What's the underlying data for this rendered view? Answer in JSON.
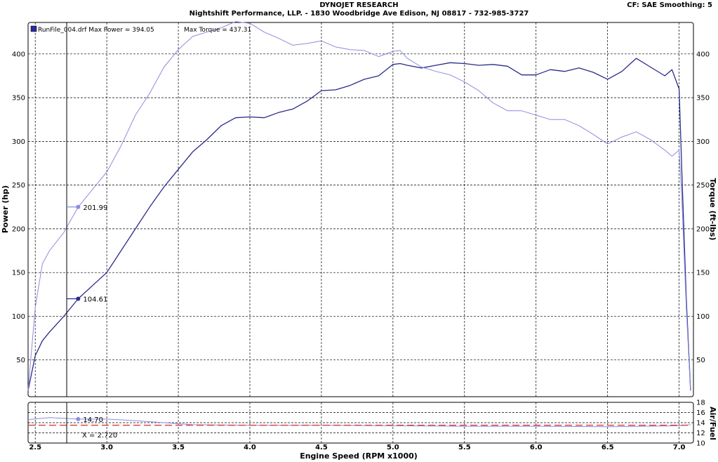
{
  "header": {
    "title": "DYNOJET RESEARCH",
    "subtitle": "Nightshift Performance, LLP. - 1830 Woodbridge Ave Edison, NJ 08817 - 732-985-3727",
    "settings": "CF: SAE  Smoothing: 5"
  },
  "legend": {
    "run_label": "RunFile_004.drf Max Power = 394.05",
    "torque_label": "Max Torque = 437.31"
  },
  "cursor": {
    "x_value": 2.72,
    "x_label": "X = 2.720",
    "power_readout": "104.61",
    "torque_readout": "201.99",
    "afr_readout": "14.70"
  },
  "colors": {
    "power": "#2a2a8a",
    "torque": "#8c8ce0",
    "afr": "#8c8ce0",
    "afr_target": "#d84a4a",
    "grid": "#000000"
  },
  "chart_data": [
    {
      "type": "line",
      "xlabel": "Engine Speed (RPM x1000)",
      "ylabel": "Power (hp)",
      "y2label": "Torque (ft-lbs)",
      "xlim": [
        2.45,
        7.1
      ],
      "ylim": [
        8,
        436
      ],
      "y2lim": [
        8,
        436
      ],
      "xticks": [
        2.5,
        3.0,
        3.5,
        4.0,
        4.5,
        5.0,
        5.5,
        6.0,
        6.5,
        7.0
      ],
      "xtick_labels": [
        "2.5",
        "3.0",
        "3.5",
        "4.0",
        "4.5",
        "5.0",
        "5.5",
        "6.0",
        "6.5",
        "7.0"
      ],
      "yticks": [
        50,
        100,
        150,
        200,
        250,
        300,
        350,
        400
      ],
      "ytick_labels": [
        "50",
        "100",
        "150",
        "200",
        "250",
        "300",
        "350",
        "400"
      ],
      "grid": true,
      "series": [
        {
          "name": "Power",
          "axis": "left",
          "color": "#2a2a8a",
          "x": [
            2.45,
            2.5,
            2.55,
            2.6,
            2.7,
            2.8,
            2.9,
            3.0,
            3.1,
            3.2,
            3.3,
            3.4,
            3.5,
            3.6,
            3.7,
            3.8,
            3.9,
            4.0,
            4.1,
            4.2,
            4.3,
            4.4,
            4.5,
            4.6,
            4.7,
            4.8,
            4.9,
            5.0,
            5.05,
            5.1,
            5.2,
            5.3,
            5.4,
            5.5,
            5.6,
            5.7,
            5.8,
            5.9,
            6.0,
            6.1,
            6.2,
            6.3,
            6.4,
            6.5,
            6.6,
            6.7,
            6.8,
            6.9,
            6.95,
            7.0,
            7.02,
            7.05,
            7.08
          ],
          "y": [
            15,
            55,
            72,
            82,
            100,
            120,
            135,
            150,
            175,
            200,
            225,
            248,
            268,
            288,
            302,
            318,
            327,
            328,
            327,
            333,
            337,
            346,
            358,
            359,
            364,
            371,
            375,
            388,
            389,
            387,
            384,
            387,
            390,
            389,
            387,
            388,
            386,
            376,
            376,
            382,
            380,
            384,
            379,
            371,
            380,
            395,
            385,
            375,
            382,
            360,
            260,
            120,
            15
          ]
        },
        {
          "name": "Torque",
          "axis": "right",
          "color": "#8c8ce0",
          "x": [
            2.45,
            2.5,
            2.55,
            2.6,
            2.7,
            2.8,
            2.9,
            3.0,
            3.1,
            3.2,
            3.3,
            3.4,
            3.5,
            3.6,
            3.7,
            3.8,
            3.9,
            4.0,
            4.1,
            4.2,
            4.3,
            4.4,
            4.5,
            4.6,
            4.7,
            4.8,
            4.9,
            5.0,
            5.05,
            5.1,
            5.2,
            5.3,
            5.4,
            5.5,
            5.6,
            5.7,
            5.8,
            5.9,
            6.0,
            6.1,
            6.2,
            6.3,
            6.4,
            6.5,
            6.6,
            6.7,
            6.8,
            6.9,
            6.95,
            7.0,
            7.02,
            7.05,
            7.08
          ],
          "y": [
            15,
            110,
            160,
            175,
            196,
            225,
            245,
            265,
            295,
            330,
            355,
            385,
            405,
            420,
            425,
            430,
            437,
            435,
            425,
            418,
            410,
            412,
            415,
            408,
            405,
            404,
            397,
            403,
            404,
            395,
            385,
            380,
            376,
            368,
            358,
            344,
            335,
            335,
            330,
            325,
            325,
            318,
            308,
            297,
            305,
            311,
            302,
            290,
            283,
            290,
            230,
            110,
            15
          ]
        }
      ]
    },
    {
      "type": "line",
      "xlabel": "Engine Speed (RPM x1000)",
      "ylabel": "Air/Fuel",
      "xlim": [
        2.45,
        7.1
      ],
      "ylim": [
        10,
        18
      ],
      "yticks": [
        10,
        12,
        14,
        16,
        18
      ],
      "ytick_labels": [
        "10",
        "12",
        "14",
        "16",
        "18"
      ],
      "grid": true,
      "series": [
        {
          "name": "Air/Fuel",
          "color": "#8c8ce0",
          "x": [
            2.45,
            2.6,
            2.8,
            3.0,
            3.2,
            3.4,
            3.6,
            4.0,
            4.5,
            5.0,
            5.5,
            6.0,
            6.5,
            7.0,
            7.08
          ],
          "y": [
            14.6,
            15.0,
            14.7,
            14.7,
            14.4,
            14.0,
            13.6,
            13.5,
            13.5,
            13.4,
            13.3,
            13.3,
            13.2,
            13.4,
            13.6
          ]
        },
        {
          "name": "Target",
          "color": "#d84a4a",
          "dashed": true,
          "x": [
            2.45,
            7.08
          ],
          "y": [
            13.5,
            13.5
          ]
        }
      ]
    }
  ]
}
